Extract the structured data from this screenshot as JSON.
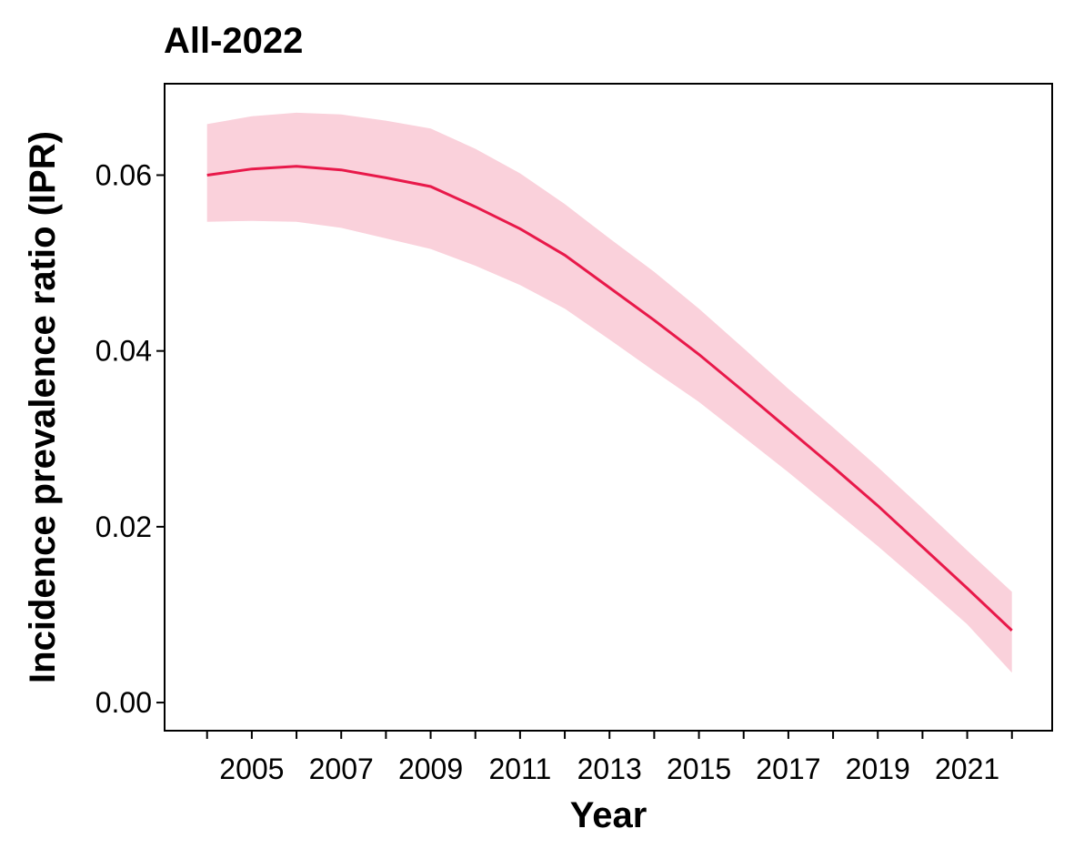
{
  "chart_data": {
    "type": "line",
    "title": "All-2022",
    "xlabel": "Year",
    "ylabel": "Incidence prevalence ratio (IPR)",
    "x": [
      2004,
      2005,
      2006,
      2007,
      2008,
      2009,
      2010,
      2011,
      2012,
      2013,
      2014,
      2015,
      2016,
      2017,
      2018,
      2019,
      2020,
      2021,
      2022
    ],
    "series": [
      {
        "values": [
          0.06,
          0.0607,
          0.061,
          0.0606,
          0.0597,
          0.0587,
          0.0564,
          0.0539,
          0.0509,
          0.0472,
          0.0435,
          0.0396,
          0.0354,
          0.0311,
          0.0268,
          0.0224,
          0.0177,
          0.013,
          0.0082
        ],
        "lower": [
          0.0547,
          0.0548,
          0.0547,
          0.054,
          0.0528,
          0.0516,
          0.0497,
          0.0475,
          0.0448,
          0.0413,
          0.0377,
          0.0342,
          0.0302,
          0.0262,
          0.022,
          0.0178,
          0.0134,
          0.0089,
          0.0034
        ],
        "upper": [
          0.0658,
          0.0667,
          0.0671,
          0.0669,
          0.0662,
          0.0653,
          0.063,
          0.0602,
          0.0567,
          0.0528,
          0.049,
          0.0448,
          0.0403,
          0.0357,
          0.0313,
          0.0268,
          0.0221,
          0.0173,
          0.0126
        ],
        "color": "#e8194a",
        "band_color": "#fad1db"
      }
    ],
    "x_ticks": [
      2004,
      2005,
      2006,
      2007,
      2008,
      2009,
      2010,
      2011,
      2012,
      2013,
      2014,
      2015,
      2016,
      2017,
      2018,
      2019,
      2020,
      2021,
      2022
    ],
    "x_tick_labels": [
      "",
      "2005",
      "",
      "2007",
      "",
      "2009",
      "",
      "2011",
      "",
      "2013",
      "",
      "2015",
      "",
      "2017",
      "",
      "2019",
      "",
      "2021",
      ""
    ],
    "y_ticks": [
      0.0,
      0.02,
      0.04,
      0.06
    ],
    "y_tick_labels": [
      "0.00",
      "0.02",
      "0.04",
      "0.06"
    ],
    "xlim": [
      2003.05,
      2022.9
    ],
    "ylim": [
      -0.0032,
      0.0704
    ],
    "grid": false,
    "legend": "none"
  }
}
